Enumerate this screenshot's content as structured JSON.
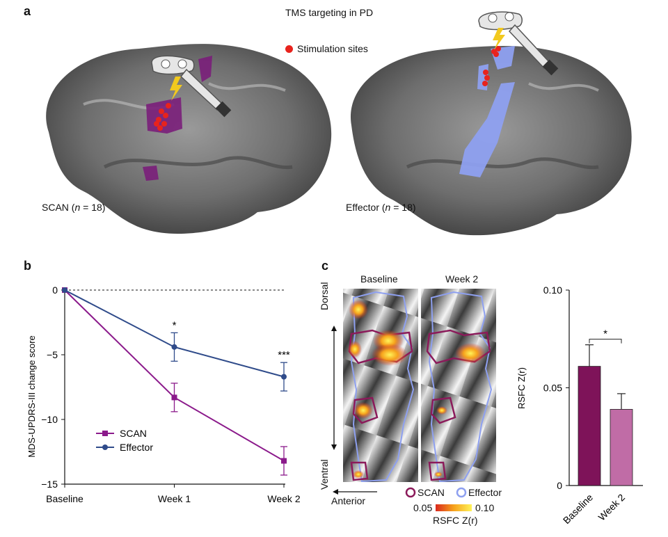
{
  "panel_a": {
    "letter": "a",
    "title": "TMS targeting in PD",
    "legend_label": "Stimulation sites",
    "left_brain": {
      "label_prefix": "SCAN (",
      "n_symbol": "n",
      "label_suffix": " = 18)"
    },
    "right_brain": {
      "label_prefix": "Effector (",
      "n_symbol": "n",
      "label_suffix": " = 18)"
    }
  },
  "panel_b": {
    "letter": "b",
    "significance": [
      "",
      "*",
      "***"
    ]
  },
  "panel_c": {
    "letter": "c",
    "map_titles": [
      "Baseline",
      "Week 2"
    ],
    "axis_dorsal": "Dorsal",
    "axis_ventral": "Ventral",
    "axis_anterior": "Anterior",
    "legend_scan": "SCAN",
    "legend_effector": "Effector",
    "colorbar_min": "0.05",
    "colorbar_max": "0.10",
    "colorbar_label": "RSFC Z(r)",
    "bar_significance": "*"
  },
  "colors": {
    "scan": "#8b1a8b",
    "effector": "#2f4b8a",
    "stim": "#e8231d",
    "bar_baseline": "#7e1359",
    "bar_week2": "#c06ca6",
    "effector_region": "#8ea0f0",
    "scan_region": "#7a1e7a"
  },
  "chart_data": [
    {
      "type": "line",
      "title": "",
      "xlabel": "",
      "ylabel": "MDS-UPDRS-III change score",
      "categories": [
        "Baseline",
        "Week 1",
        "Week 2"
      ],
      "ylim": [
        -15,
        0
      ],
      "yticks": [
        "0",
        "−5",
        "−10",
        "−15"
      ],
      "series": [
        {
          "name": "SCAN",
          "values": [
            0,
            -8.3,
            -13.2
          ],
          "errors": [
            0,
            1.1,
            1.1
          ]
        },
        {
          "name": "Effector",
          "values": [
            0,
            -4.4,
            -6.7
          ],
          "errors": [
            0,
            1.1,
            1.1
          ]
        }
      ],
      "legend": "bottom-left"
    },
    {
      "type": "bar",
      "title": "",
      "xlabel": "",
      "ylabel": "RSFC Z(r)",
      "categories": [
        "Baseline",
        "Week 2"
      ],
      "values": [
        0.061,
        0.039
      ],
      "errors": [
        0.011,
        0.008
      ],
      "ylim": [
        0,
        0.1
      ],
      "yticks": [
        "0",
        "0.05",
        "0.10"
      ]
    }
  ]
}
